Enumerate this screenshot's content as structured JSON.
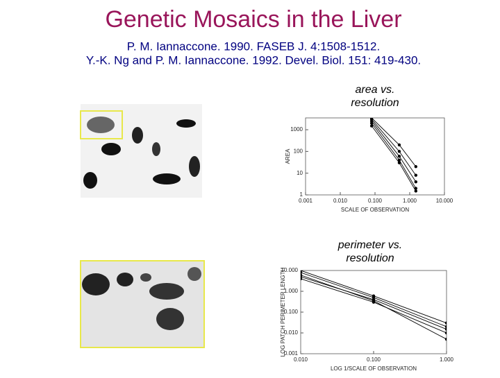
{
  "header": {
    "title": "Genetic Mosaics in the Liver",
    "references": [
      "P. M. Iannaccone. 1990. FASEB J. 4:1508-1512.",
      "Y.-K. Ng and P. M. Iannaccone.  1992.  Devel. Biol. 151: 419-430."
    ]
  },
  "chart_data": [
    {
      "type": "line",
      "title": [
        "area vs.",
        "resolution"
      ],
      "x_label": "SCALE OF OBSERVATION",
      "y_label": "AREA",
      "log_x": true,
      "log_y": true,
      "xlim": [
        0.001,
        10
      ],
      "xticks": [
        {
          "value": 0.001,
          "label": "0.001"
        },
        {
          "value": 0.01,
          "label": "0.010"
        },
        {
          "value": 0.1,
          "label": "0.100"
        },
        {
          "value": 1,
          "label": "1.000"
        },
        {
          "value": 10,
          "label": "10.000"
        }
      ],
      "ylim": [
        1,
        3500
      ],
      "yticks": [
        1,
        10,
        100,
        1000
      ],
      "x": [
        0.08,
        0.5,
        1.5
      ],
      "series": [
        {
          "color": "#000000",
          "values": [
            2500,
            60,
            4
          ]
        },
        {
          "color": "#000000",
          "values": [
            3000,
            100,
            8
          ]
        },
        {
          "color": "#000000",
          "values": [
            3500,
            200,
            20
          ]
        },
        {
          "color": "#000000",
          "values": [
            2000,
            40,
            2
          ]
        },
        {
          "color": "#000000",
          "values": [
            1500,
            30,
            1.5
          ]
        }
      ]
    },
    {
      "type": "line",
      "title": [
        "perimeter  vs.",
        "resolution"
      ],
      "x_label": "LOG 1/SCALE OF OBSERVATION",
      "y_label": "LOG PATCH PERIMETER LENGTH",
      "log_x": true,
      "log_y": true,
      "xlim": [
        0.01,
        1
      ],
      "xticks": [
        {
          "value": 0.01,
          "label": "0.010"
        },
        {
          "value": 0.1,
          "label": "0.100"
        },
        {
          "value": 1,
          "label": "1.000"
        }
      ],
      "ylim": [
        0.001,
        10
      ],
      "yticks": [
        {
          "value": 0.001,
          "label": "0.001"
        },
        {
          "value": 0.01,
          "label": "0.010"
        },
        {
          "value": 0.1,
          "label": "0.100"
        },
        {
          "value": 1,
          "label": "1.000"
        },
        {
          "value": 10,
          "label": "10.000"
        }
      ],
      "x": [
        0.01,
        0.1,
        1
      ],
      "series": [
        {
          "color": "#000000",
          "values": [
            8,
            0.5,
            0.02
          ]
        },
        {
          "color": "#000000",
          "values": [
            5,
            0.4,
            0.015
          ]
        },
        {
          "color": "#000000",
          "values": [
            10,
            0.6,
            0.03
          ]
        },
        {
          "color": "#000000",
          "values": [
            4,
            0.3,
            0.01
          ]
        },
        {
          "color": "#000000",
          "values": [
            6,
            0.35,
            0.005
          ]
        }
      ]
    }
  ]
}
